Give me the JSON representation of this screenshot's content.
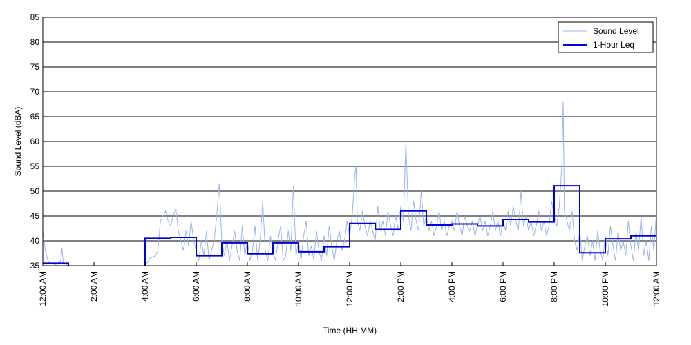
{
  "chart_data": {
    "type": "line",
    "title": "",
    "xlabel": "Time (HH:MM)",
    "ylabel": "Sound Level (dBA)",
    "ylim": [
      35,
      85
    ],
    "yticks": [
      35,
      40,
      45,
      50,
      55,
      60,
      65,
      70,
      75,
      80,
      85
    ],
    "xlim_hours": [
      0,
      24
    ],
    "xticks": [
      {
        "hour": 0,
        "label": "12:00 AM"
      },
      {
        "hour": 2,
        "label": "2:00 AM"
      },
      {
        "hour": 4,
        "label": "4:00 AM"
      },
      {
        "hour": 6,
        "label": "6:00 AM"
      },
      {
        "hour": 8,
        "label": "8:00 AM"
      },
      {
        "hour": 10,
        "label": "10:00 AM"
      },
      {
        "hour": 12,
        "label": "12:00 PM"
      },
      {
        "hour": 14,
        "label": "2:00 PM"
      },
      {
        "hour": 16,
        "label": "4:00 PM"
      },
      {
        "hour": 18,
        "label": "6:00 PM"
      },
      {
        "hour": 20,
        "label": "8:00 PM"
      },
      {
        "hour": 22,
        "label": "10:00 PM"
      },
      {
        "hour": 24,
        "label": "12:00 AM"
      }
    ],
    "grid": "horizontal",
    "legend": {
      "placement": "top-right"
    },
    "series": [
      {
        "name": "Sound Level",
        "color": "#99b4ee",
        "style": "thin-line",
        "points": [
          [
            0,
            42
          ],
          [
            0.1,
            38
          ],
          [
            0.2,
            36
          ],
          [
            0.3,
            35.5
          ],
          [
            0.5,
            35.2
          ],
          [
            0.7,
            36
          ],
          [
            0.75,
            38.5
          ],
          [
            0.8,
            35.5
          ],
          [
            1.0,
            35
          ],
          [
            4.0,
            35
          ],
          [
            4.2,
            36.5
          ],
          [
            4.4,
            37
          ],
          [
            4.5,
            38
          ],
          [
            4.6,
            44
          ],
          [
            4.7,
            45
          ],
          [
            4.8,
            46
          ],
          [
            4.9,
            44
          ],
          [
            5.0,
            43
          ],
          [
            5.1,
            45
          ],
          [
            5.2,
            46.5
          ],
          [
            5.3,
            42
          ],
          [
            5.4,
            40
          ],
          [
            5.5,
            38
          ],
          [
            5.6,
            42
          ],
          [
            5.7,
            39
          ],
          [
            5.8,
            44
          ],
          [
            5.9,
            40
          ],
          [
            6.0,
            38
          ],
          [
            6.1,
            36
          ],
          [
            6.2,
            40
          ],
          [
            6.3,
            37
          ],
          [
            6.4,
            42
          ],
          [
            6.5,
            36
          ],
          [
            6.6,
            38
          ],
          [
            6.7,
            40
          ],
          [
            6.8,
            45
          ],
          [
            6.9,
            51.5
          ],
          [
            7.0,
            40
          ],
          [
            7.1,
            37
          ],
          [
            7.2,
            40
          ],
          [
            7.3,
            36
          ],
          [
            7.4,
            39
          ],
          [
            7.5,
            42
          ],
          [
            7.6,
            38
          ],
          [
            7.7,
            36
          ],
          [
            7.8,
            43
          ],
          [
            7.9,
            37
          ],
          [
            8.0,
            40
          ],
          [
            8.1,
            36
          ],
          [
            8.2,
            38
          ],
          [
            8.3,
            43
          ],
          [
            8.4,
            36
          ],
          [
            8.5,
            40
          ],
          [
            8.6,
            48
          ],
          [
            8.7,
            38
          ],
          [
            8.8,
            36
          ],
          [
            8.9,
            41
          ],
          [
            9.0,
            38
          ],
          [
            9.1,
            36
          ],
          [
            9.2,
            40
          ],
          [
            9.3,
            43
          ],
          [
            9.4,
            36
          ],
          [
            9.5,
            37
          ],
          [
            9.6,
            42
          ],
          [
            9.7,
            38
          ],
          [
            9.8,
            51
          ],
          [
            9.9,
            37
          ],
          [
            10.0,
            40
          ],
          [
            10.1,
            36
          ],
          [
            10.2,
            41
          ],
          [
            10.3,
            44
          ],
          [
            10.4,
            37
          ],
          [
            10.5,
            39
          ],
          [
            10.6,
            36
          ],
          [
            10.7,
            42
          ],
          [
            10.8,
            38
          ],
          [
            10.9,
            36
          ],
          [
            11.0,
            41
          ],
          [
            11.1,
            37
          ],
          [
            11.2,
            43
          ],
          [
            11.3,
            39
          ],
          [
            11.4,
            36
          ],
          [
            11.5,
            40
          ],
          [
            11.6,
            42
          ],
          [
            11.7,
            38
          ],
          [
            11.8,
            40
          ],
          [
            11.9,
            44
          ],
          [
            12.0,
            41
          ],
          [
            12.1,
            45
          ],
          [
            12.2,
            53
          ],
          [
            12.25,
            55
          ],
          [
            12.3,
            44
          ],
          [
            12.4,
            42
          ],
          [
            12.5,
            46
          ],
          [
            12.6,
            43
          ],
          [
            12.7,
            41
          ],
          [
            12.8,
            44
          ],
          [
            12.9,
            42
          ],
          [
            13.0,
            40
          ],
          [
            13.1,
            47
          ],
          [
            13.2,
            42
          ],
          [
            13.3,
            44
          ],
          [
            13.4,
            41
          ],
          [
            13.5,
            46
          ],
          [
            13.6,
            43
          ],
          [
            13.7,
            41
          ],
          [
            13.8,
            45
          ],
          [
            13.9,
            42
          ],
          [
            14.0,
            47
          ],
          [
            14.1,
            44
          ],
          [
            14.2,
            60
          ],
          [
            14.3,
            45
          ],
          [
            14.4,
            42
          ],
          [
            14.5,
            48
          ],
          [
            14.6,
            44
          ],
          [
            14.7,
            42
          ],
          [
            14.8,
            50
          ],
          [
            14.9,
            43
          ],
          [
            15.0,
            45
          ],
          [
            15.1,
            42
          ],
          [
            15.2,
            44
          ],
          [
            15.3,
            41
          ],
          [
            15.4,
            43
          ],
          [
            15.5,
            46
          ],
          [
            15.6,
            42
          ],
          [
            15.7,
            44
          ],
          [
            15.8,
            41
          ],
          [
            15.9,
            43
          ],
          [
            16.0,
            44
          ],
          [
            16.1,
            42
          ],
          [
            16.2,
            46
          ],
          [
            16.3,
            43
          ],
          [
            16.4,
            41
          ],
          [
            16.5,
            45
          ],
          [
            16.6,
            43
          ],
          [
            16.7,
            42
          ],
          [
            16.8,
            44
          ],
          [
            16.9,
            41
          ],
          [
            17.0,
            43
          ],
          [
            17.1,
            45
          ],
          [
            17.2,
            42
          ],
          [
            17.3,
            44
          ],
          [
            17.4,
            41
          ],
          [
            17.5,
            43
          ],
          [
            17.6,
            46
          ],
          [
            17.7,
            42
          ],
          [
            17.8,
            44
          ],
          [
            17.9,
            41
          ],
          [
            18.0,
            44
          ],
          [
            18.1,
            42
          ],
          [
            18.2,
            46
          ],
          [
            18.3,
            43
          ],
          [
            18.4,
            47
          ],
          [
            18.5,
            44
          ],
          [
            18.6,
            42
          ],
          [
            18.7,
            50
          ],
          [
            18.8,
            43
          ],
          [
            18.9,
            45
          ],
          [
            19.0,
            42
          ],
          [
            19.1,
            44
          ],
          [
            19.2,
            41
          ],
          [
            19.3,
            43
          ],
          [
            19.4,
            46
          ],
          [
            19.5,
            42
          ],
          [
            19.6,
            44
          ],
          [
            19.7,
            41
          ],
          [
            19.8,
            43
          ],
          [
            19.9,
            48
          ],
          [
            20.0,
            45
          ],
          [
            20.1,
            43
          ],
          [
            20.2,
            47
          ],
          [
            20.3,
            55
          ],
          [
            20.35,
            68
          ],
          [
            20.4,
            46
          ],
          [
            20.5,
            44
          ],
          [
            20.6,
            42
          ],
          [
            20.7,
            46
          ],
          [
            20.8,
            40
          ],
          [
            20.9,
            38
          ],
          [
            21.0,
            42
          ],
          [
            21.1,
            36
          ],
          [
            21.2,
            39
          ],
          [
            21.3,
            41
          ],
          [
            21.4,
            37
          ],
          [
            21.5,
            40
          ],
          [
            21.6,
            36
          ],
          [
            21.7,
            42
          ],
          [
            21.8,
            38
          ],
          [
            21.9,
            36
          ],
          [
            22.0,
            41
          ],
          [
            22.1,
            37
          ],
          [
            22.2,
            43
          ],
          [
            22.3,
            39
          ],
          [
            22.4,
            36
          ],
          [
            22.5,
            42
          ],
          [
            22.6,
            38
          ],
          [
            22.7,
            40
          ],
          [
            22.8,
            37
          ],
          [
            22.9,
            44
          ],
          [
            23.0,
            39
          ],
          [
            23.1,
            36
          ],
          [
            23.2,
            42
          ],
          [
            23.3,
            38
          ],
          [
            23.4,
            45
          ],
          [
            23.5,
            37
          ],
          [
            23.6,
            40
          ],
          [
            23.7,
            36
          ],
          [
            23.8,
            43
          ],
          [
            23.9,
            38
          ],
          [
            24.0,
            46
          ]
        ]
      },
      {
        "name": "1-Hour Leq",
        "color": "#0000dd",
        "style": "step",
        "steps": [
          [
            0,
            1,
            35.5
          ],
          [
            4,
            5,
            40.5
          ],
          [
            5,
            6,
            40.7
          ],
          [
            6,
            7,
            37.0
          ],
          [
            7,
            8,
            39.6
          ],
          [
            8,
            9,
            37.4
          ],
          [
            9,
            10,
            39.6
          ],
          [
            10,
            11,
            37.8
          ],
          [
            11,
            12,
            38.8
          ],
          [
            12,
            13,
            43.5
          ],
          [
            13,
            14,
            42.3
          ],
          [
            14,
            15,
            46.0
          ],
          [
            15,
            16,
            43.2
          ],
          [
            16,
            17,
            43.4
          ],
          [
            17,
            18,
            43.0
          ],
          [
            18,
            19,
            44.3
          ],
          [
            19,
            20,
            43.8
          ],
          [
            20,
            21,
            51.1
          ],
          [
            21,
            22,
            37.6
          ],
          [
            22,
            23,
            40.4
          ],
          [
            23,
            24,
            41.0
          ]
        ]
      }
    ]
  }
}
